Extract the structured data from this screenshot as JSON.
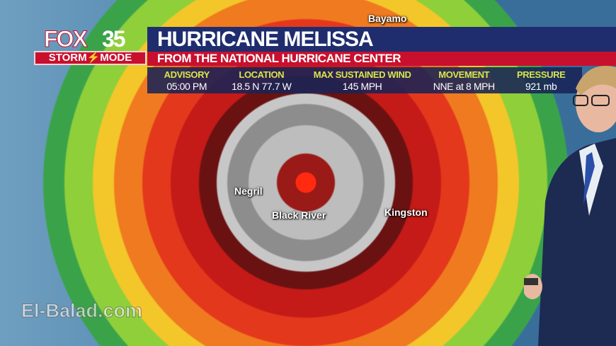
{
  "branding": {
    "station_name": "FOX",
    "channel_number": "35",
    "storm_mode": "STORM⚡MODE"
  },
  "header": {
    "title": "HURRICANE MELISSA",
    "subtitle": "FROM THE NATIONAL HURRICANE CENTER"
  },
  "stats": [
    {
      "label": "ADVISORY",
      "value": "05:00 PM"
    },
    {
      "label": "LOCATION",
      "value": "18.5 N 77.7 W"
    },
    {
      "label": "MAX SUSTAINED WIND",
      "value": "145 MPH"
    },
    {
      "label": "MOVEMENT",
      "value": "NNE at 8 MPH"
    },
    {
      "label": "PRESSURE",
      "value": "921 mb"
    }
  ],
  "map": {
    "places": [
      "Bayamo",
      "Negril",
      "Black River",
      "Kingston"
    ]
  },
  "watermark": "El-Balad.com",
  "colors": {
    "title_bar": "#1f2d6e",
    "subtitle_bar": "#c8102e",
    "stat_label": "#d8e64c"
  }
}
